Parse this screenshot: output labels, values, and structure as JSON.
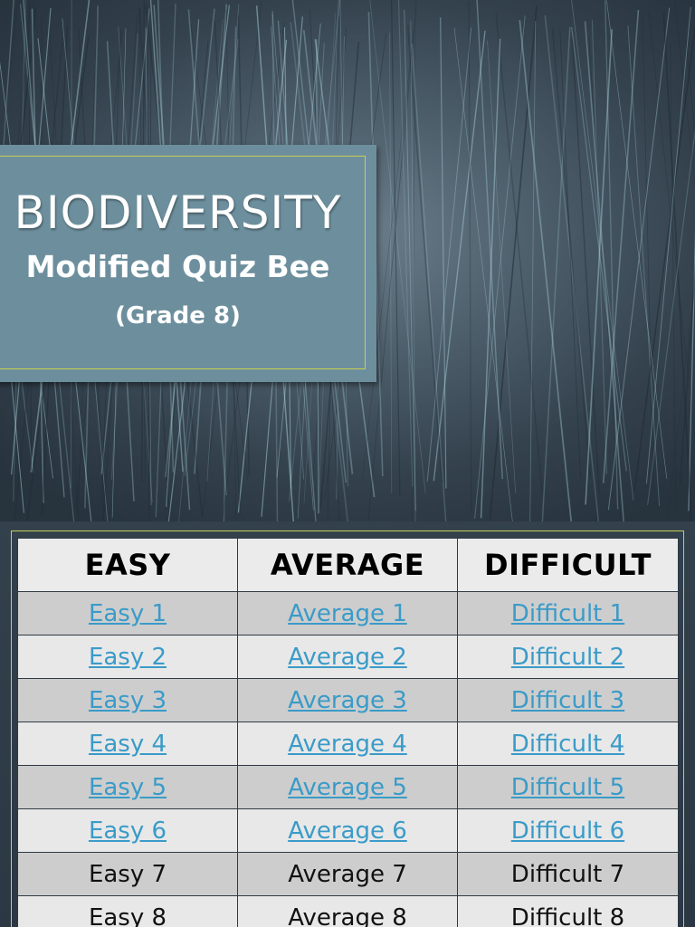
{
  "title_slide": {
    "title": "BIODIVERSITY",
    "subtitle": "Modified Quiz Bee",
    "grade": "(Grade 8)"
  },
  "table": {
    "headers": [
      "EASY",
      "AVERAGE",
      "DIFFICULT"
    ],
    "rows": [
      {
        "easy": "Easy 1",
        "average": "Average 1",
        "difficult": "Difficult 1",
        "linked": true
      },
      {
        "easy": "Easy 2",
        "average": "Average 2",
        "difficult": "Difficult 2",
        "linked": true
      },
      {
        "easy": "Easy 3",
        "average": "Average 3",
        "difficult": "Difficult 3",
        "linked": true
      },
      {
        "easy": "Easy 4",
        "average": "Average 4",
        "difficult": "Difficult 4",
        "linked": true
      },
      {
        "easy": "Easy 5",
        "average": "Average 5",
        "difficult": "Difficult 5",
        "linked": true
      },
      {
        "easy": "Easy 6",
        "average": "Average 6",
        "difficult": "Difficult 6",
        "linked": true
      },
      {
        "easy": "Easy 7",
        "average": "Average 7",
        "difficult": "Difficult 7",
        "linked": false
      },
      {
        "easy": "Easy 8",
        "average": "Average 8",
        "difficult": "Difficult 8",
        "linked": false
      }
    ]
  },
  "colors": {
    "title_box": "#6d8f9d",
    "accent_border": "#c9cf52",
    "link": "#3a9bc8",
    "row_dark": "#cdcdcd",
    "row_light": "#e8e8e8"
  }
}
